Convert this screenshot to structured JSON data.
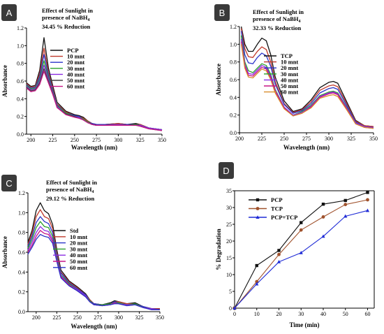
{
  "colors": {
    "black": "#111111",
    "red": "#c0392b",
    "blue": "#2a33c9",
    "green": "#2aa02a",
    "purple": "#8a2be2",
    "magenta": "#c71585",
    "orange": "#d98c2b",
    "gray": "#444444",
    "pcp": "#111111",
    "tcp": "#a0522d",
    "mix": "#1f2bd6",
    "badge": "#3a3a3a"
  },
  "chart_data": [
    {
      "id": "A",
      "type": "line",
      "panel_label": "A",
      "title_lines": [
        "Effect of Sunlight in",
        "presence of NaBH",
        "34.45 % Reduction"
      ],
      "title_sub": "4",
      "xlabel": "Wavelength (nm)",
      "ylabel": "Absorbance",
      "xlim": [
        195,
        350
      ],
      "ylim": [
        0,
        1.2
      ],
      "xticks": [
        200,
        225,
        250,
        275,
        300,
        325,
        350
      ],
      "yticks": [
        0.0,
        0.2,
        0.4,
        0.6,
        0.8,
        1.0,
        1.2
      ],
      "legend_position": "top-center",
      "x": [
        195,
        200,
        205,
        210,
        215,
        220,
        225,
        230,
        240,
        250,
        255,
        260,
        265,
        270,
        275,
        285,
        300,
        310,
        320,
        325,
        335,
        350
      ],
      "series": [
        {
          "name": "PCP",
          "color": "black",
          "values": [
            0.58,
            0.54,
            0.55,
            0.72,
            1.09,
            0.75,
            0.55,
            0.36,
            0.26,
            0.22,
            0.21,
            0.19,
            0.15,
            0.12,
            0.11,
            0.11,
            0.12,
            0.11,
            0.12,
            0.11,
            0.07,
            0.05
          ]
        },
        {
          "name": "10 mnt",
          "color": "red",
          "values": [
            0.57,
            0.53,
            0.54,
            0.68,
            0.97,
            0.7,
            0.52,
            0.34,
            0.25,
            0.21,
            0.2,
            0.18,
            0.15,
            0.12,
            0.11,
            0.11,
            0.12,
            0.11,
            0.11,
            0.11,
            0.07,
            0.05
          ]
        },
        {
          "name": "20 mnt",
          "color": "blue",
          "values": [
            0.56,
            0.52,
            0.53,
            0.65,
            0.9,
            0.67,
            0.5,
            0.33,
            0.24,
            0.21,
            0.2,
            0.17,
            0.14,
            0.12,
            0.11,
            0.11,
            0.11,
            0.11,
            0.11,
            0.1,
            0.07,
            0.05
          ]
        },
        {
          "name": "30 mnt",
          "color": "green",
          "values": [
            0.55,
            0.51,
            0.52,
            0.62,
            0.83,
            0.64,
            0.48,
            0.32,
            0.24,
            0.2,
            0.19,
            0.17,
            0.14,
            0.11,
            0.1,
            0.1,
            0.11,
            0.1,
            0.11,
            0.1,
            0.07,
            0.05
          ]
        },
        {
          "name": "40 mnt",
          "color": "purple",
          "values": [
            0.54,
            0.5,
            0.51,
            0.6,
            0.78,
            0.62,
            0.47,
            0.31,
            0.23,
            0.2,
            0.19,
            0.16,
            0.13,
            0.11,
            0.1,
            0.1,
            0.11,
            0.1,
            0.1,
            0.1,
            0.07,
            0.05
          ]
        },
        {
          "name": "50 mnt",
          "color": "gray",
          "values": [
            0.53,
            0.49,
            0.5,
            0.58,
            0.74,
            0.6,
            0.46,
            0.3,
            0.23,
            0.2,
            0.18,
            0.16,
            0.13,
            0.11,
            0.1,
            0.1,
            0.1,
            0.1,
            0.1,
            0.09,
            0.06,
            0.04
          ]
        },
        {
          "name": "60 mnt",
          "color": "magenta",
          "values": [
            0.52,
            0.48,
            0.49,
            0.56,
            0.71,
            0.58,
            0.45,
            0.3,
            0.22,
            0.19,
            0.18,
            0.16,
            0.13,
            0.11,
            0.1,
            0.1,
            0.1,
            0.1,
            0.1,
            0.09,
            0.06,
            0.04
          ]
        }
      ]
    },
    {
      "id": "B",
      "type": "line",
      "panel_label": "B",
      "title_lines": [
        "Effect of Sunlight in",
        "presence of NaBH",
        "32.33 % Reduction"
      ],
      "title_sub": "4",
      "xlabel": "Wavelength (nm)",
      "ylabel": "Absorbance",
      "xlim": [
        200,
        350
      ],
      "ylim": [
        0,
        1.2
      ],
      "xticks": [
        200,
        225,
        250,
        275,
        300,
        325,
        350
      ],
      "yticks": [
        0.0,
        0.2,
        0.4,
        0.6,
        0.8,
        1.0,
        1.2
      ],
      "legend_position": "top-center",
      "x": [
        202,
        206,
        210,
        215,
        220,
        225,
        230,
        235,
        240,
        250,
        260,
        270,
        280,
        290,
        300,
        305,
        310,
        320,
        330,
        340,
        350
      ],
      "series": [
        {
          "name": "TCP",
          "color": "black",
          "values": [
            1.2,
            1.0,
            0.92,
            0.92,
            1.0,
            1.07,
            1.04,
            0.88,
            0.63,
            0.36,
            0.24,
            0.27,
            0.37,
            0.51,
            0.57,
            0.58,
            0.56,
            0.35,
            0.14,
            0.08,
            0.07
          ]
        },
        {
          "name": "10 mnt",
          "color": "red",
          "values": [
            1.18,
            0.95,
            0.86,
            0.85,
            0.92,
            0.97,
            0.94,
            0.8,
            0.58,
            0.33,
            0.23,
            0.26,
            0.35,
            0.48,
            0.53,
            0.54,
            0.52,
            0.33,
            0.13,
            0.08,
            0.07
          ]
        },
        {
          "name": "20 mnt",
          "color": "blue",
          "values": [
            1.15,
            0.88,
            0.79,
            0.78,
            0.85,
            0.9,
            0.87,
            0.75,
            0.55,
            0.32,
            0.22,
            0.25,
            0.33,
            0.45,
            0.5,
            0.51,
            0.49,
            0.31,
            0.12,
            0.07,
            0.06
          ]
        },
        {
          "name": "30 mnt",
          "color": "green",
          "values": [
            1.1,
            0.8,
            0.7,
            0.68,
            0.73,
            0.78,
            0.76,
            0.66,
            0.49,
            0.29,
            0.2,
            0.24,
            0.31,
            0.42,
            0.46,
            0.47,
            0.45,
            0.29,
            0.11,
            0.07,
            0.06
          ]
        },
        {
          "name": "40 mnt",
          "color": "purple",
          "values": [
            1.06,
            0.77,
            0.67,
            0.66,
            0.71,
            0.76,
            0.74,
            0.64,
            0.48,
            0.29,
            0.2,
            0.23,
            0.3,
            0.41,
            0.45,
            0.46,
            0.44,
            0.28,
            0.11,
            0.07,
            0.06
          ]
        },
        {
          "name": "50 mnt",
          "color": "magenta",
          "values": [
            1.03,
            0.75,
            0.65,
            0.64,
            0.69,
            0.74,
            0.72,
            0.62,
            0.47,
            0.28,
            0.19,
            0.22,
            0.29,
            0.4,
            0.44,
            0.45,
            0.43,
            0.27,
            0.1,
            0.06,
            0.05
          ]
        },
        {
          "name": "60 mnt",
          "color": "orange",
          "values": [
            1.0,
            0.73,
            0.63,
            0.62,
            0.67,
            0.72,
            0.7,
            0.6,
            0.45,
            0.27,
            0.19,
            0.22,
            0.28,
            0.39,
            0.42,
            0.43,
            0.41,
            0.26,
            0.1,
            0.06,
            0.05
          ]
        }
      ]
    },
    {
      "id": "C",
      "type": "line",
      "panel_label": "C",
      "title_lines": [
        "Effect of Sunlight in",
        "presence of NaBH",
        "29.12 % Reduction"
      ],
      "title_sub": "4",
      "xlabel": "Wavelength (nm)",
      "ylabel": "Absorbance",
      "xlim": [
        190,
        350
      ],
      "ylim": [
        0,
        1.2
      ],
      "xticks": [
        200,
        225,
        250,
        275,
        300,
        325,
        350
      ],
      "yticks": [
        0.0,
        0.2,
        0.4,
        0.6,
        0.8,
        1.0,
        1.2
      ],
      "legend_position": "center",
      "x": [
        190,
        195,
        200,
        205,
        210,
        215,
        220,
        225,
        230,
        240,
        250,
        260,
        265,
        270,
        280,
        290,
        295,
        300,
        310,
        320,
        330,
        340,
        350
      ],
      "series": [
        {
          "name": "Std",
          "color": "black",
          "values": [
            0.7,
            0.82,
            1.02,
            1.1,
            1.02,
            0.99,
            0.88,
            0.63,
            0.42,
            0.31,
            0.25,
            0.18,
            0.12,
            0.08,
            0.07,
            0.09,
            0.11,
            0.1,
            0.08,
            0.09,
            0.05,
            0.03,
            0.03
          ]
        },
        {
          "name": "10 mnt",
          "color": "red",
          "values": [
            0.68,
            0.79,
            0.96,
            1.03,
            0.96,
            0.94,
            0.84,
            0.6,
            0.4,
            0.3,
            0.24,
            0.17,
            0.12,
            0.08,
            0.07,
            0.08,
            0.1,
            0.1,
            0.08,
            0.08,
            0.05,
            0.03,
            0.03
          ]
        },
        {
          "name": "20 mnt",
          "color": "blue",
          "values": [
            0.66,
            0.76,
            0.9,
            0.96,
            0.91,
            0.89,
            0.8,
            0.57,
            0.39,
            0.29,
            0.23,
            0.17,
            0.11,
            0.08,
            0.07,
            0.08,
            0.1,
            0.09,
            0.07,
            0.08,
            0.05,
            0.03,
            0.02
          ]
        },
        {
          "name": "30 mnt",
          "color": "green",
          "values": [
            0.64,
            0.73,
            0.85,
            0.91,
            0.86,
            0.85,
            0.76,
            0.55,
            0.37,
            0.28,
            0.22,
            0.16,
            0.11,
            0.07,
            0.07,
            0.08,
            0.09,
            0.09,
            0.07,
            0.08,
            0.04,
            0.03,
            0.02
          ]
        },
        {
          "name": "40 mnt",
          "color": "purple",
          "values": [
            0.62,
            0.7,
            0.8,
            0.86,
            0.82,
            0.81,
            0.73,
            0.53,
            0.36,
            0.27,
            0.22,
            0.16,
            0.1,
            0.07,
            0.06,
            0.07,
            0.09,
            0.08,
            0.07,
            0.07,
            0.04,
            0.03,
            0.02
          ]
        },
        {
          "name": "50 mnt",
          "color": "magenta",
          "values": [
            0.6,
            0.67,
            0.76,
            0.82,
            0.79,
            0.78,
            0.71,
            0.52,
            0.35,
            0.27,
            0.21,
            0.15,
            0.1,
            0.07,
            0.06,
            0.07,
            0.09,
            0.08,
            0.06,
            0.07,
            0.04,
            0.02,
            0.02
          ]
        },
        {
          "name": "60 mnt",
          "color": "blue",
          "values": [
            0.58,
            0.65,
            0.73,
            0.78,
            0.76,
            0.75,
            0.69,
            0.51,
            0.34,
            0.26,
            0.21,
            0.15,
            0.1,
            0.07,
            0.06,
            0.07,
            0.08,
            0.08,
            0.06,
            0.07,
            0.04,
            0.02,
            0.02
          ]
        }
      ]
    },
    {
      "id": "D",
      "type": "line",
      "panel_label": "D",
      "title_lines": [],
      "xlabel": "Time (min)",
      "ylabel": "% Degradation",
      "xlim": [
        0,
        63
      ],
      "ylim": [
        0,
        35
      ],
      "xticks": [
        0,
        10,
        20,
        30,
        40,
        50,
        60
      ],
      "yticks": [
        0,
        5,
        10,
        15,
        20,
        25,
        30,
        35
      ],
      "legend_position": "top-left",
      "markers": true,
      "x": [
        0,
        10,
        20,
        30,
        40,
        50,
        60
      ],
      "series": [
        {
          "name": "PCP",
          "color": "pcp",
          "marker": "square",
          "values": [
            0,
            12.7,
            17.2,
            25.5,
            31.0,
            32.1,
            34.5
          ]
        },
        {
          "name": "TCP",
          "color": "tcp",
          "marker": "circle",
          "values": [
            0,
            7.9,
            16.0,
            23.3,
            27.2,
            30.9,
            32.3
          ]
        },
        {
          "name": "PCP+TCP",
          "color": "mix",
          "marker": "triangle",
          "values": [
            0,
            7.2,
            13.8,
            16.5,
            21.4,
            27.4,
            29.1
          ]
        }
      ]
    }
  ]
}
